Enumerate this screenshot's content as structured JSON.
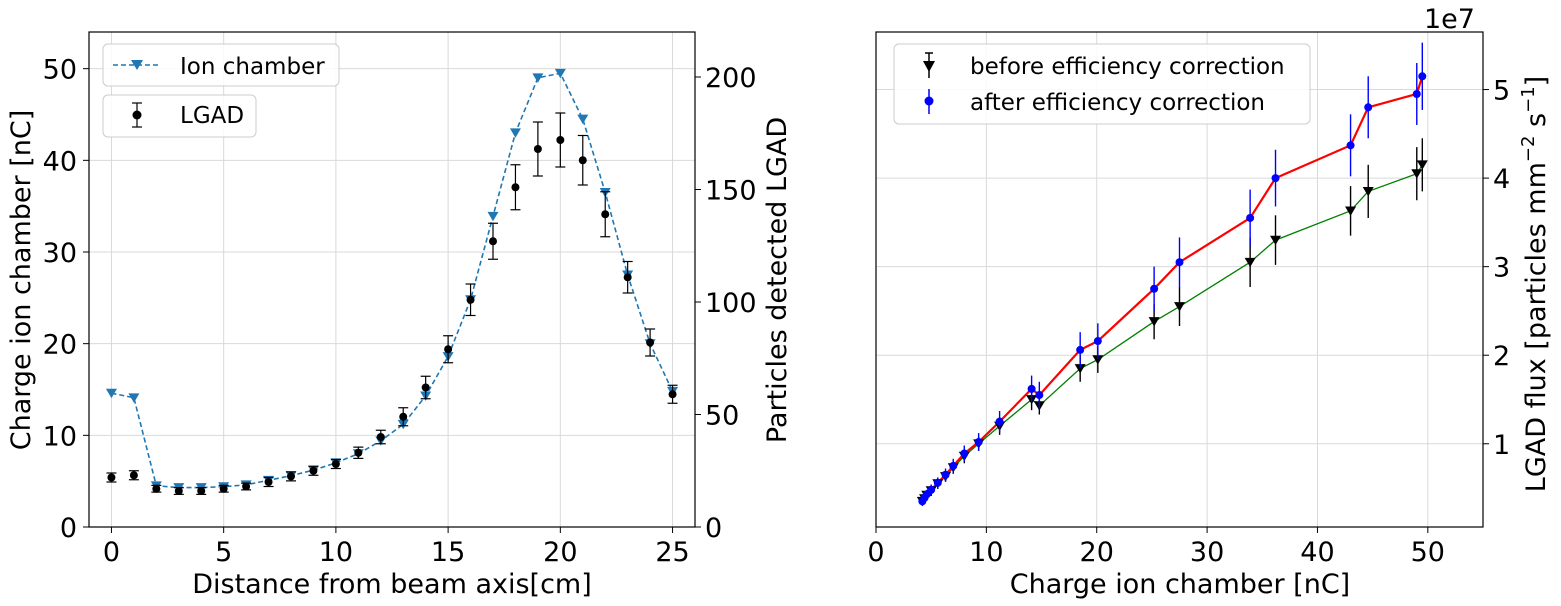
{
  "chart_data": [
    {
      "type": "line",
      "xlabel": "Distance from beam axis[cm]",
      "ylabel": "Charge ion chamber [nC]",
      "y2label": "Particles detected LGAD",
      "xlim": [
        -1,
        26
      ],
      "ylim": [
        0,
        54
      ],
      "y2lim": [
        0,
        220
      ],
      "xticks": [
        0,
        5,
        10,
        15,
        20,
        25
      ],
      "yticks": [
        0,
        10,
        20,
        30,
        40,
        50
      ],
      "y2ticks": [
        0,
        50,
        100,
        150,
        200
      ],
      "grid": true,
      "legend_position": "top-left",
      "colors": {
        "ion_chamber": "#1f77b4",
        "lgad": "#000000",
        "ylabel": "#1f77b4"
      },
      "series": [
        {
          "name": "Ion chamber",
          "axis": "left",
          "style": "dashed-line-triangle-down",
          "x": [
            0,
            1,
            2,
            3,
            4,
            5,
            6,
            7,
            8,
            9,
            10,
            11,
            12,
            13,
            14,
            15,
            16,
            17,
            18,
            19,
            20,
            21,
            22,
            23,
            24,
            25
          ],
          "y": [
            14.6,
            14.1,
            4.5,
            4.3,
            4.3,
            4.4,
            4.6,
            5.1,
            5.6,
            6.2,
            7.0,
            8.0,
            9.4,
            11.2,
            14.3,
            18.6,
            24.8,
            33.9,
            43.0,
            49.0,
            49.5,
            44.5,
            36.5,
            27.5,
            20.0,
            14.8
          ]
        },
        {
          "name": "LGAD",
          "axis": "right",
          "style": "points-with-errorbars",
          "x": [
            0,
            1,
            2,
            3,
            4,
            5,
            6,
            7,
            8,
            9,
            10,
            11,
            12,
            13,
            14,
            15,
            16,
            17,
            18,
            19,
            20,
            21,
            22,
            23,
            24,
            25
          ],
          "y": [
            22,
            23,
            17,
            16,
            16,
            17,
            18,
            20,
            22.5,
            25,
            28,
            33,
            40,
            49,
            62,
            79,
            101,
            127,
            151,
            168,
            172,
            163,
            139,
            111,
            82,
            59
          ],
          "yerr": [
            2,
            2,
            1.5,
            1.5,
            1.5,
            1.5,
            1.5,
            2,
            2,
            2,
            2,
            2.5,
            3,
            4,
            5,
            6,
            7,
            8,
            10,
            12,
            12,
            11,
            10,
            7,
            6,
            4
          ]
        }
      ]
    },
    {
      "type": "scatter",
      "xlabel": "Charge ion chamber [nC]",
      "ylabel": "LGAD flux [particles mm$^{-2}$ s$^{-1}$]",
      "ylabel_parts": {
        "main": "LGAD flux [particles mm",
        "exp1": "−2",
        "mid": " s",
        "exp2": "−1",
        "end": "]"
      },
      "offset_text": "1e7",
      "xlim": [
        0,
        55
      ],
      "ylim": [
        0.06,
        5.65
      ],
      "xticks": [
        0,
        10,
        20,
        30,
        40,
        50
      ],
      "yticks": [
        1,
        2,
        3,
        4,
        5
      ],
      "grid": true,
      "legend_position": "top-left",
      "colors": {
        "before": "#000000",
        "after": "#0000ff",
        "fit_before": "#008000",
        "fit_after": "#ff0000"
      },
      "series": [
        {
          "name": "before efficiency correction",
          "style": "triangle-down-with-errorbars",
          "fit_color": "green",
          "x": [
            4.2,
            4.4,
            4.6,
            5.0,
            5.6,
            6.3,
            7.0,
            8.0,
            9.3,
            11.2,
            14.1,
            14.8,
            18.5,
            20.1,
            25.2,
            27.5,
            33.9,
            36.2,
            43.0,
            44.6,
            49.0,
            49.5
          ],
          "y": [
            0.35,
            0.38,
            0.42,
            0.47,
            0.55,
            0.63,
            0.73,
            0.86,
            1.0,
            1.2,
            1.5,
            1.43,
            1.85,
            1.95,
            2.38,
            2.55,
            3.05,
            3.3,
            3.63,
            3.85,
            4.05,
            4.15
          ],
          "yerr": [
            0.05,
            0.05,
            0.05,
            0.06,
            0.06,
            0.06,
            0.07,
            0.08,
            0.08,
            0.1,
            0.12,
            0.1,
            0.15,
            0.15,
            0.2,
            0.22,
            0.28,
            0.28,
            0.28,
            0.3,
            0.3,
            0.3
          ]
        },
        {
          "name": "after efficiency correction",
          "style": "circle-with-errorbars",
          "fit_color": "red",
          "x": [
            4.2,
            4.4,
            4.6,
            5.0,
            5.6,
            6.3,
            7.0,
            8.0,
            9.3,
            11.2,
            14.1,
            14.8,
            18.5,
            20.1,
            25.2,
            27.5,
            33.9,
            36.2,
            43.0,
            44.6,
            49.0,
            49.5
          ],
          "y": [
            0.35,
            0.39,
            0.43,
            0.48,
            0.56,
            0.65,
            0.75,
            0.89,
            1.02,
            1.25,
            1.62,
            1.55,
            2.06,
            2.16,
            2.75,
            3.05,
            3.55,
            4.0,
            4.37,
            4.8,
            4.95,
            5.15
          ],
          "yerr": [
            0.05,
            0.05,
            0.05,
            0.06,
            0.06,
            0.07,
            0.08,
            0.09,
            0.1,
            0.12,
            0.15,
            0.15,
            0.2,
            0.2,
            0.25,
            0.28,
            0.32,
            0.32,
            0.35,
            0.35,
            0.35,
            0.38
          ]
        }
      ]
    }
  ]
}
